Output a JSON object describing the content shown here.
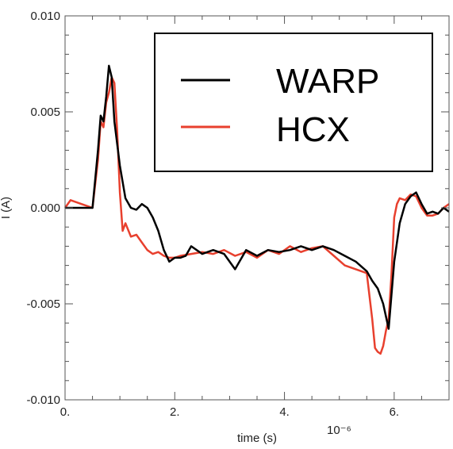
{
  "chart_data": {
    "type": "line",
    "xlabel": "time (s)",
    "x_multiplier": "10⁻⁶",
    "ylabel": "I (A)",
    "xlim": [
      0,
      7
    ],
    "ylim": [
      -0.01,
      0.01
    ],
    "xticks": [
      0,
      2,
      4,
      6
    ],
    "xtick_labels": [
      "0.",
      "2.",
      "4.",
      "6."
    ],
    "yticks": [
      0.01,
      0.005,
      0.0,
      -0.005,
      -0.01
    ],
    "ytick_labels": [
      "0.010",
      "0.005",
      "0.000",
      "-0.005",
      "-0.010"
    ],
    "grid": false,
    "legend_position": "top-right",
    "series": [
      {
        "name": "WARP",
        "color": "#000000",
        "x": [
          0,
          0.5,
          0.6,
          0.65,
          0.7,
          0.75,
          0.8,
          0.85,
          0.9,
          1.0,
          1.1,
          1.2,
          1.3,
          1.4,
          1.5,
          1.6,
          1.7,
          1.8,
          1.9,
          2.0,
          2.1,
          2.2,
          2.3,
          2.5,
          2.7,
          2.9,
          3.1,
          3.3,
          3.5,
          3.7,
          3.9,
          4.1,
          4.3,
          4.5,
          4.7,
          4.9,
          5.1,
          5.3,
          5.5,
          5.6,
          5.7,
          5.8,
          5.9,
          6.0,
          6.1,
          6.2,
          6.3,
          6.4,
          6.5,
          6.6,
          6.7,
          6.8,
          6.9,
          7.0
        ],
        "y": [
          0.0,
          0.0,
          0.003,
          0.0048,
          0.0045,
          0.0058,
          0.0074,
          0.0068,
          0.0045,
          0.0022,
          0.0005,
          0.0,
          -0.0001,
          0.0002,
          0.0,
          -0.0005,
          -0.0012,
          -0.0022,
          -0.0028,
          -0.0026,
          -0.0026,
          -0.0025,
          -0.002,
          -0.0024,
          -0.0022,
          -0.0024,
          -0.0032,
          -0.0022,
          -0.0025,
          -0.0022,
          -0.0023,
          -0.0022,
          -0.002,
          -0.0022,
          -0.002,
          -0.0022,
          -0.0025,
          -0.0028,
          -0.0033,
          -0.0038,
          -0.0042,
          -0.005,
          -0.0063,
          -0.0028,
          -0.0008,
          0.0002,
          0.0006,
          0.0008,
          0.0002,
          -0.0003,
          -0.0002,
          -0.0003,
          0.0,
          -0.0002
        ]
      },
      {
        "name": "HCX",
        "color": "#e8402e",
        "x": [
          0,
          0.1,
          0.3,
          0.5,
          0.6,
          0.65,
          0.7,
          0.75,
          0.8,
          0.85,
          0.9,
          0.95,
          1.0,
          1.05,
          1.1,
          1.2,
          1.3,
          1.4,
          1.5,
          1.6,
          1.7,
          1.8,
          1.9,
          2.0,
          2.1,
          2.3,
          2.5,
          2.7,
          2.9,
          3.1,
          3.3,
          3.5,
          3.7,
          3.9,
          4.1,
          4.3,
          4.5,
          4.7,
          4.9,
          5.1,
          5.3,
          5.5,
          5.6,
          5.65,
          5.7,
          5.75,
          5.8,
          5.85,
          5.9,
          5.95,
          6.0,
          6.05,
          6.1,
          6.2,
          6.3,
          6.4,
          6.5,
          6.6,
          6.7,
          6.8,
          6.9,
          7.0
        ],
        "y": [
          0.0,
          0.0004,
          0.0002,
          0.0,
          0.0025,
          0.0045,
          0.0042,
          0.0055,
          0.006,
          0.0068,
          0.0065,
          0.004,
          0.0008,
          -0.0012,
          -0.0008,
          -0.0015,
          -0.0014,
          -0.0018,
          -0.0022,
          -0.0024,
          -0.0023,
          -0.0025,
          -0.0026,
          -0.0026,
          -0.0025,
          -0.0024,
          -0.0023,
          -0.0024,
          -0.0022,
          -0.0025,
          -0.0023,
          -0.0026,
          -0.0022,
          -0.0024,
          -0.002,
          -0.0023,
          -0.0021,
          -0.002,
          -0.0025,
          -0.003,
          -0.0032,
          -0.0034,
          -0.0058,
          -0.0073,
          -0.0075,
          -0.0076,
          -0.0072,
          -0.0064,
          -0.0058,
          -0.0035,
          -0.0005,
          0.0002,
          0.0005,
          0.0004,
          0.0007,
          0.0006,
          0.0,
          -0.0004,
          -0.0004,
          -0.0003,
          0.0,
          0.0002
        ]
      }
    ]
  }
}
